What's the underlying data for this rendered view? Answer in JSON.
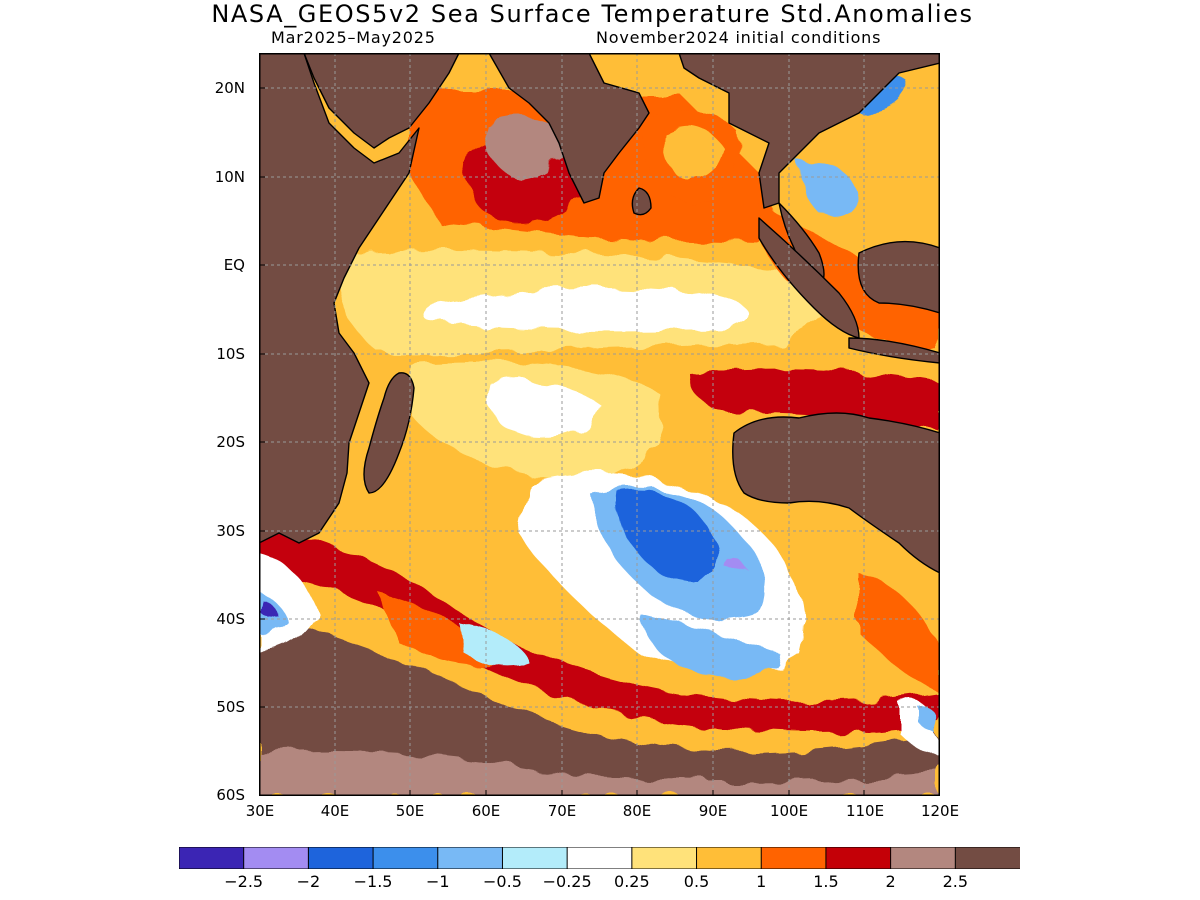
{
  "title": "NASA_GEOS5v2 Sea Surface Temperature Std.Anomalies",
  "period": "Mar2025–May2025",
  "init": "November2024 initial conditions",
  "lat_labels": [
    "20N",
    "10N",
    "EQ",
    "10S",
    "20S",
    "30S",
    "40S",
    "50S",
    "60S"
  ],
  "lon_labels": [
    "30E",
    "40E",
    "50E",
    "60E",
    "70E",
    "80E",
    "90E",
    "100E",
    "110E",
    "120E"
  ],
  "extent": {
    "lon": [
      30,
      120
    ],
    "lat": [
      -60,
      24
    ]
  },
  "colorbar": {
    "colors": [
      "#3b25b4",
      "#a38cf2",
      "#1e64dc",
      "#3c8fec",
      "#78b9f5",
      "#b3ecfa",
      "#ffffff",
      "#ffe27a",
      "#ffbe37",
      "#ff6300",
      "#c40007",
      "#b3877f",
      "#734c43"
    ],
    "labels": [
      "−2.5",
      "−2",
      "−1.5",
      "−1",
      "−0.5",
      "−0.25",
      "0.25",
      "0.5",
      "1",
      "1.5",
      "2",
      "2.5"
    ]
  },
  "colors": {
    "land": "#734c43",
    "coast": "#000000",
    "grid": "#9a9a9a"
  }
}
